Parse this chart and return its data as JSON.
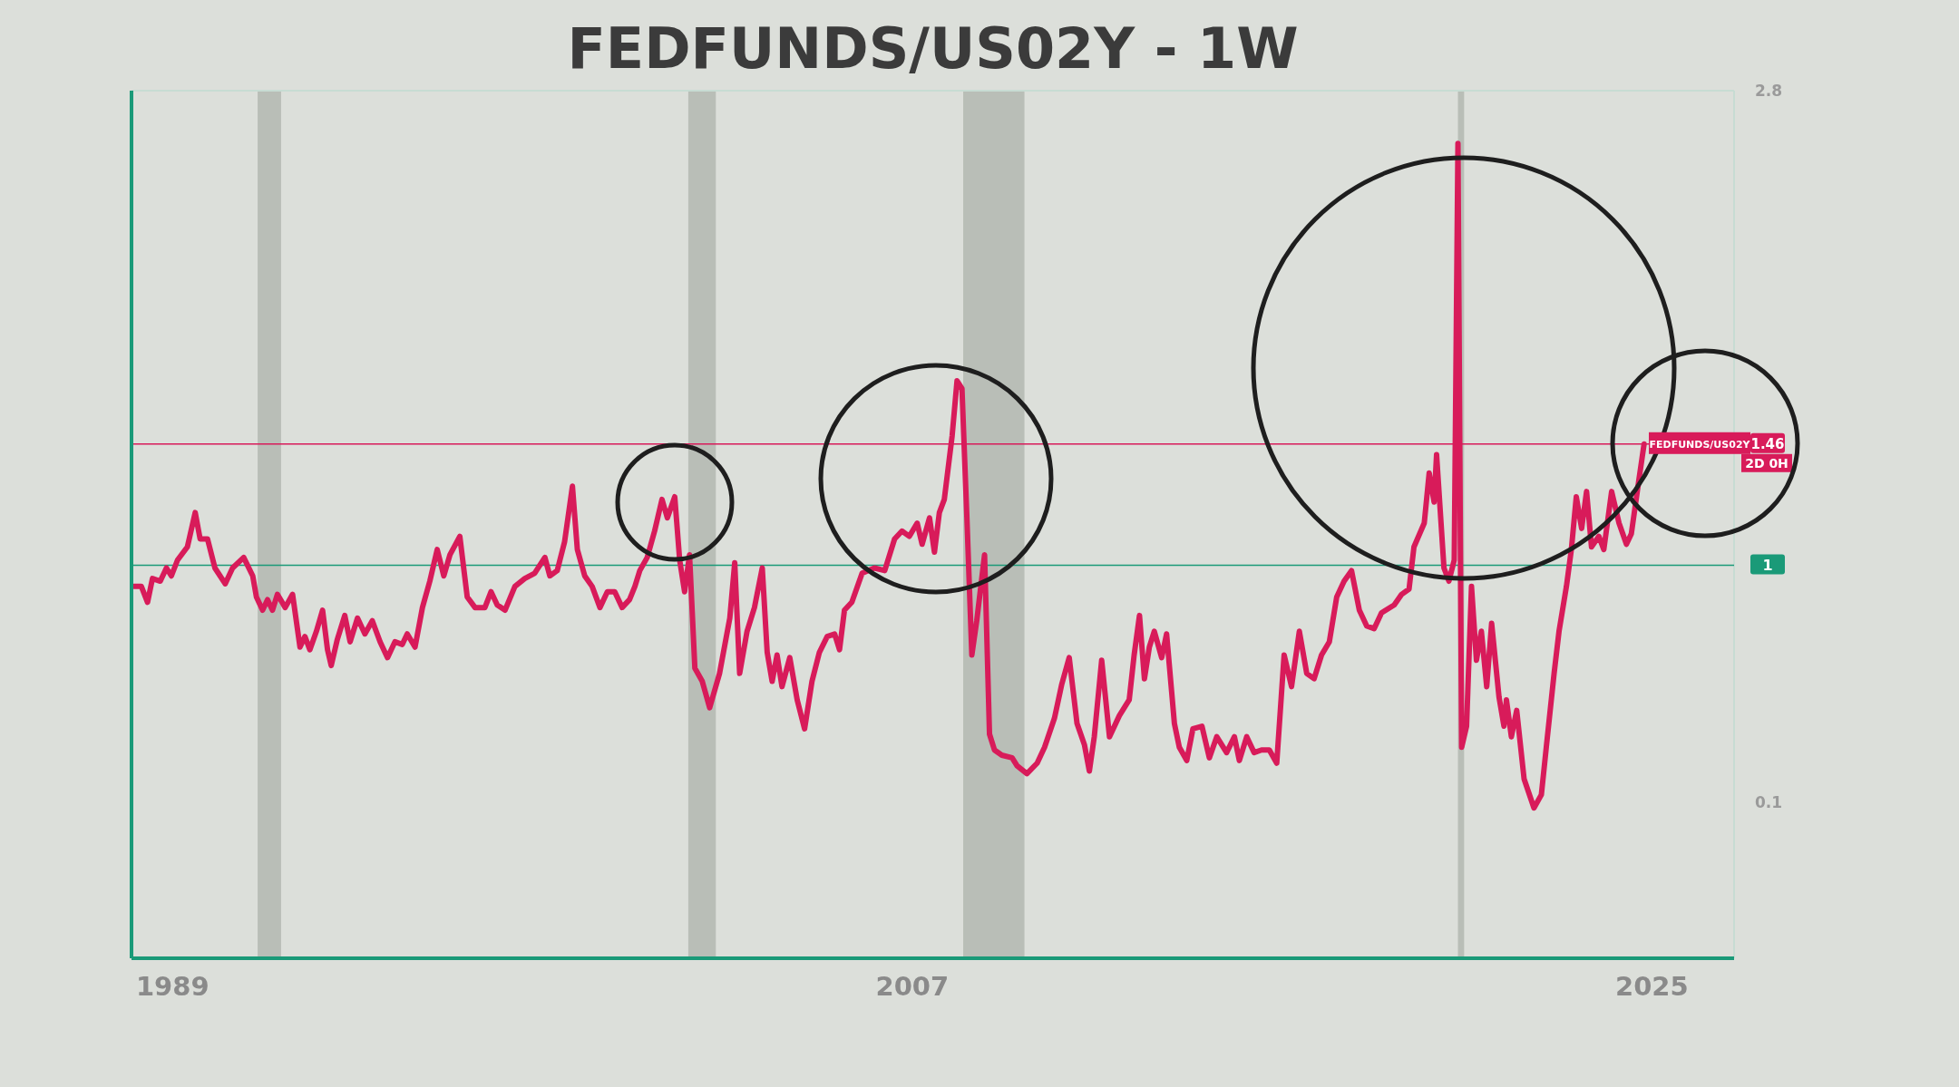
{
  "chart_data": {
    "type": "line",
    "title": "FEDFUNDS/US02Y - 1W",
    "x": [
      1988.06,
      1988.24,
      1988.39,
      1988.51,
      1988.7,
      1988.85,
      1988.97,
      1989.12,
      1989.36,
      1989.55,
      1989.67,
      1989.85,
      1990.03,
      1990.28,
      1990.46,
      1990.73,
      1990.95,
      1991.04,
      1991.19,
      1991.31,
      1991.43,
      1991.55,
      1991.74,
      1991.92,
      1992.1,
      1992.22,
      1992.34,
      1992.5,
      1992.65,
      1992.77,
      1992.86,
      1993.01,
      1993.19,
      1993.32,
      1993.5,
      1993.68,
      1993.86,
      1994.05,
      1994.23,
      1994.41,
      1994.59,
      1994.71,
      1994.9,
      1995.08,
      1995.26,
      1995.44,
      1995.6,
      1995.75,
      1995.99,
      1996.17,
      1996.36,
      1996.6,
      1996.75,
      1996.9,
      1997.09,
      1997.33,
      1997.57,
      1997.81,
      1998.06,
      1998.18,
      1998.36,
      1998.54,
      1998.73,
      1998.85,
      1999.03,
      1999.21,
      1999.4,
      1999.58,
      1999.76,
      1999.94,
      2000.12,
      2000.25,
      2000.37,
      2000.55,
      2000.73,
      2000.91,
      2001.04,
      2001.22,
      2001.34,
      2001.46,
      2001.58,
      2001.71,
      2001.89,
      2002.07,
      2002.31,
      2002.56,
      2002.68,
      2002.8,
      2002.98,
      2003.16,
      2003.35,
      2003.47,
      2003.59,
      2003.71,
      2003.83,
      2004.02,
      2004.2,
      2004.38,
      2004.56,
      2004.74,
      2004.93,
      2005.11,
      2005.23,
      2005.35,
      2005.53,
      2005.78,
      2006.08,
      2006.33,
      2006.57,
      2006.75,
      2006.93,
      2007.12,
      2007.24,
      2007.42,
      2007.54,
      2007.66,
      2007.78,
      2007.97,
      2008.09,
      2008.21,
      2008.33,
      2008.45,
      2008.57,
      2008.76,
      2008.88,
      2009.0,
      2009.18,
      2009.43,
      2009.55,
      2009.79,
      2010.04,
      2010.22,
      2010.46,
      2010.64,
      2010.82,
      2011.01,
      2011.19,
      2011.31,
      2011.43,
      2011.61,
      2011.8,
      2012.04,
      2012.28,
      2012.4,
      2012.53,
      2012.65,
      2012.77,
      2012.89,
      2013.07,
      2013.19,
      2013.38,
      2013.5,
      2013.68,
      2013.83,
      2014.05,
      2014.23,
      2014.41,
      2014.65,
      2014.84,
      2014.96,
      2015.14,
      2015.32,
      2015.5,
      2015.69,
      2015.87,
      2016.05,
      2016.23,
      2016.42,
      2016.6,
      2016.78,
      2016.96,
      2017.15,
      2017.33,
      2017.51,
      2017.69,
      2017.88,
      2018.06,
      2018.24,
      2018.42,
      2018.73,
      2018.91,
      2019.09,
      2019.21,
      2019.46,
      2019.58,
      2019.7,
      2019.76,
      2019.94,
      2020.06,
      2020.19,
      2020.28,
      2020.37,
      2020.49,
      2020.61,
      2020.73,
      2020.85,
      2020.98,
      2021.1,
      2021.28,
      2021.4,
      2021.46,
      2021.58,
      2021.71,
      2021.89,
      2022.13,
      2022.31,
      2022.43,
      2022.62,
      2022.74,
      2022.92,
      2023.04,
      2023.16,
      2023.29,
      2023.41,
      2023.53,
      2023.71,
      2023.83,
      2024.02,
      2024.2,
      2024.38,
      2024.5,
      2024.68,
      2024.81
    ],
    "series": [
      {
        "name": "FEDFUNDS/US02Y",
        "color": "#d81b5a",
        "values": [
          0.92,
          0.92,
          0.86,
          0.95,
          0.94,
          0.99,
          0.96,
          1.02,
          1.07,
          1.2,
          1.1,
          1.1,
          0.99,
          0.93,
          0.99,
          1.03,
          0.96,
          0.88,
          0.83,
          0.87,
          0.83,
          0.89,
          0.84,
          0.89,
          0.69,
          0.73,
          0.68,
          0.75,
          0.83,
          0.68,
          0.62,
          0.72,
          0.81,
          0.71,
          0.8,
          0.74,
          0.79,
          0.71,
          0.65,
          0.71,
          0.7,
          0.74,
          0.69,
          0.84,
          0.94,
          1.06,
          0.96,
          1.04,
          1.11,
          0.88,
          0.84,
          0.84,
          0.9,
          0.85,
          0.83,
          0.92,
          0.95,
          0.97,
          1.03,
          0.96,
          0.98,
          1.09,
          1.3,
          1.06,
          0.96,
          0.92,
          0.84,
          0.9,
          0.9,
          0.84,
          0.87,
          0.92,
          0.98,
          1.03,
          1.13,
          1.25,
          1.18,
          1.26,
          1.02,
          0.9,
          1.04,
          0.61,
          0.56,
          0.46,
          0.59,
          0.8,
          1.01,
          0.59,
          0.75,
          0.84,
          0.99,
          0.67,
          0.56,
          0.66,
          0.54,
          0.65,
          0.49,
          0.38,
          0.56,
          0.67,
          0.73,
          0.74,
          0.68,
          0.83,
          0.86,
          0.97,
          0.99,
          0.98,
          1.1,
          1.13,
          1.11,
          1.16,
          1.08,
          1.18,
          1.05,
          1.2,
          1.25,
          1.49,
          1.7,
          1.67,
          1.18,
          0.66,
          0.79,
          1.04,
          0.36,
          0.3,
          0.28,
          0.27,
          0.24,
          0.21,
          0.25,
          0.31,
          0.42,
          0.55,
          0.65,
          0.4,
          0.32,
          0.22,
          0.35,
          0.64,
          0.35,
          0.43,
          0.49,
          0.66,
          0.81,
          0.57,
          0.69,
          0.75,
          0.65,
          0.74,
          0.4,
          0.31,
          0.26,
          0.38,
          0.39,
          0.27,
          0.35,
          0.29,
          0.35,
          0.26,
          0.35,
          0.29,
          0.3,
          0.3,
          0.25,
          0.66,
          0.54,
          0.75,
          0.59,
          0.57,
          0.66,
          0.71,
          0.88,
          0.94,
          0.98,
          0.83,
          0.77,
          0.76,
          0.82,
          0.85,
          0.89,
          0.91,
          1.07,
          1.16,
          1.35,
          1.24,
          1.42,
          0.99,
          0.94,
          1.02,
          2.6,
          0.31,
          0.39,
          0.92,
          0.64,
          0.75,
          0.54,
          0.78,
          0.5,
          0.39,
          0.49,
          0.35,
          0.45,
          0.19,
          0.08,
          0.13,
          0.31,
          0.59,
          0.75,
          0.92,
          1.06,
          1.26,
          1.14,
          1.28,
          1.07,
          1.11,
          1.06,
          1.28,
          1.16,
          1.08,
          1.12,
          1.32,
          1.46
        ]
      }
    ],
    "xlim": [
      1988,
      2027
    ],
    "xticks": [
      1989,
      2007,
      2025
    ],
    "ylim": [
      -0.49,
      2.8
    ],
    "yticks": [
      0.1,
      2.8
    ],
    "ref_lines": [
      {
        "axis": "y",
        "value": 1,
        "label": "1",
        "color": "#1a9a78"
      },
      {
        "axis": "y",
        "value": 1.46,
        "label": "1.46",
        "color": "#d81b5a"
      }
    ],
    "bands": [
      {
        "axis": "x",
        "from": 1991.07,
        "to": 1991.64,
        "color": "#b9beb7"
      },
      {
        "axis": "x",
        "from": 2001.55,
        "to": 2002.22,
        "color": "#b9beb7"
      },
      {
        "axis": "x",
        "from": 2008.24,
        "to": 2009.73,
        "color": "#b9beb7"
      },
      {
        "axis": "x",
        "from": 2020.28,
        "to": 2020.43,
        "color": "#b9beb7"
      }
    ],
    "annotations": [
      "2D 0H"
    ]
  }
}
